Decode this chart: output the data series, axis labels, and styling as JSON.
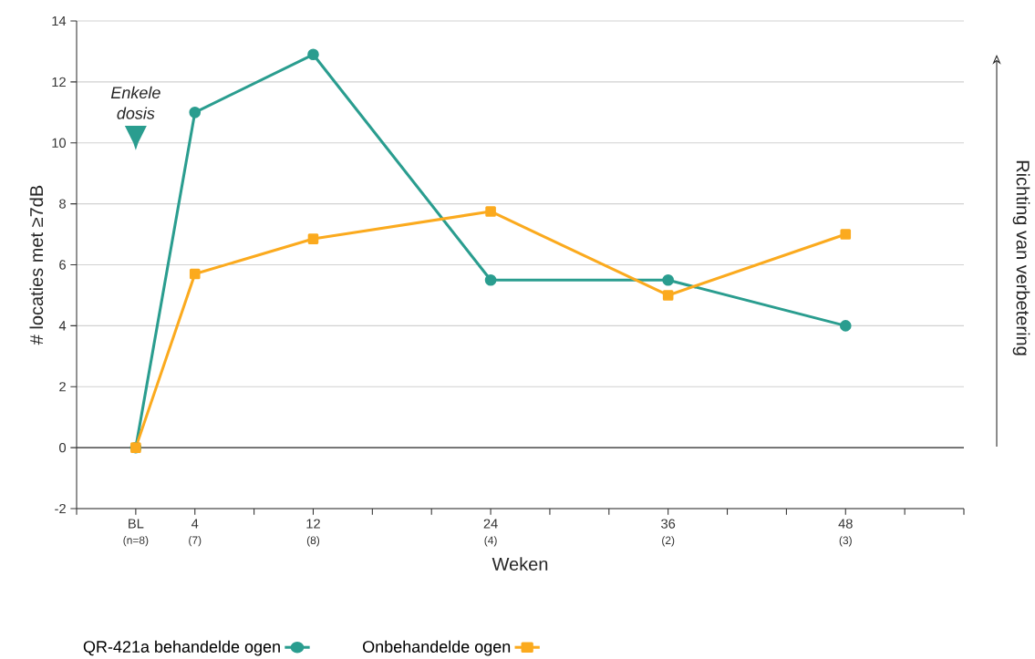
{
  "chart_data": {
    "type": "line",
    "xlabel": "Weken",
    "ylabel": "# locaties met ≥7dB",
    "x": [
      0,
      4,
      12,
      24,
      36,
      48
    ],
    "series": [
      {
        "name": "QR-421a behandelde ogen",
        "color": "#2a9d8f",
        "marker": "circle",
        "values": [
          0,
          11,
          12.9,
          5.5,
          5.5,
          4.0
        ]
      },
      {
        "name": "Onbehandelde ogen",
        "color": "#fbaa1e",
        "marker": "square",
        "values": [
          0,
          5.7,
          6.85,
          7.75,
          5.0,
          7.0
        ]
      }
    ],
    "xlim": [
      -4,
      56
    ],
    "xticks": [
      {
        "value": -4,
        "label": null
      },
      {
        "value": 0,
        "label": "BL"
      },
      4,
      {
        "value": 8,
        "label": null
      },
      12,
      {
        "value": 16,
        "label": null
      },
      {
        "value": 20,
        "label": null
      },
      24,
      {
        "value": 28,
        "label": null
      },
      {
        "value": 32,
        "label": null
      },
      36,
      {
        "value": 40,
        "label": null
      },
      {
        "value": 44,
        "label": null
      },
      48,
      {
        "value": 52,
        "label": null
      },
      {
        "value": 56,
        "label": null
      }
    ],
    "ylim": [
      -2,
      14
    ],
    "yticks": [
      -2,
      0,
      2,
      4,
      6,
      8,
      10,
      12,
      14
    ],
    "grid": "y",
    "legend": "bottom",
    "line_style": "solid",
    "ref_lines": [
      {
        "axis": "y",
        "value": 0,
        "color": "#333333"
      }
    ],
    "annotations": [
      "Enkele dosis",
      "Richting van verbetering",
      "(n=8)",
      "(7)",
      "(8)",
      "(4)",
      "(2)",
      "(3)"
    ]
  }
}
